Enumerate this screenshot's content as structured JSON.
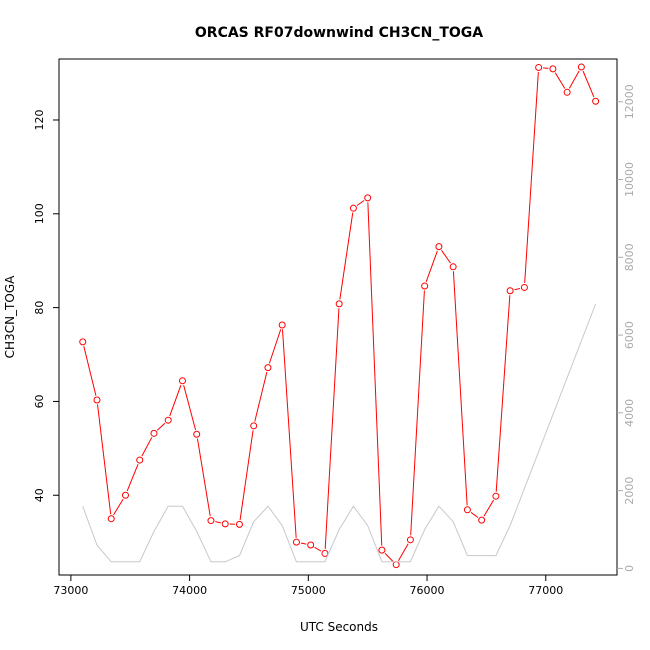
{
  "chart_data": {
    "type": "line",
    "title": "ORCAS RF07downwind CH3CN_TOGA",
    "xlabel": "UTC Seconds",
    "ylabel": "CH3CN_TOGA",
    "xlim": [
      72900,
      77600
    ],
    "ylim": [
      23,
      133
    ],
    "y2lim": [
      -170,
      13100
    ],
    "xticks": [
      73000,
      74000,
      75000,
      76000,
      77000
    ],
    "yticks": [
      40,
      60,
      80,
      100,
      120
    ],
    "y2ticks": [
      0,
      2000,
      4000,
      6000,
      8000,
      10000,
      12000
    ],
    "grid": false,
    "series": [
      {
        "axis": "left",
        "color": "#ff0000",
        "marker": "open-circle",
        "x": [
          73100,
          73220,
          73340,
          73460,
          73580,
          73700,
          73820,
          73940,
          74060,
          74180,
          74300,
          74420,
          74540,
          74660,
          74780,
          74900,
          75020,
          75140,
          75260,
          75380,
          75500,
          75620,
          75740,
          75860,
          75980,
          76100,
          76220,
          76340,
          76460,
          76580,
          76700,
          76820,
          76940,
          77060,
          77180,
          77300,
          77420
        ],
        "y": [
          72.7,
          60.3,
          35.0,
          40.0,
          47.5,
          53.2,
          56.0,
          64.4,
          53.0,
          34.6,
          33.9,
          33.8,
          54.8,
          67.2,
          76.3,
          30.0,
          29.4,
          27.6,
          80.8,
          101.2,
          103.4,
          28.3,
          25.2,
          30.5,
          84.6,
          93.0,
          88.7,
          36.9,
          34.7,
          39.8,
          83.6,
          84.3,
          131.2,
          130.9,
          125.9,
          131.3,
          124.0
        ]
      },
      {
        "axis": "right",
        "color": "#c8c8c8",
        "marker": "none",
        "x": [
          73100,
          73220,
          73340,
          73460,
          73580,
          73700,
          73820,
          73940,
          74060,
          74180,
          74300,
          74420,
          74540,
          74660,
          74780,
          74900,
          75020,
          75140,
          75260,
          75380,
          75500,
          75620,
          75740,
          75860,
          75980,
          76100,
          76220,
          76340,
          76460,
          76580,
          76700,
          77420
        ],
        "y": [
          1600,
          600,
          170,
          170,
          170,
          950,
          1600,
          1600,
          950,
          170,
          170,
          330,
          1200,
          1600,
          1100,
          170,
          170,
          170,
          1000,
          1600,
          1100,
          170,
          170,
          170,
          1000,
          1600,
          1200,
          330,
          330,
          330,
          1100,
          6800
        ]
      }
    ]
  }
}
